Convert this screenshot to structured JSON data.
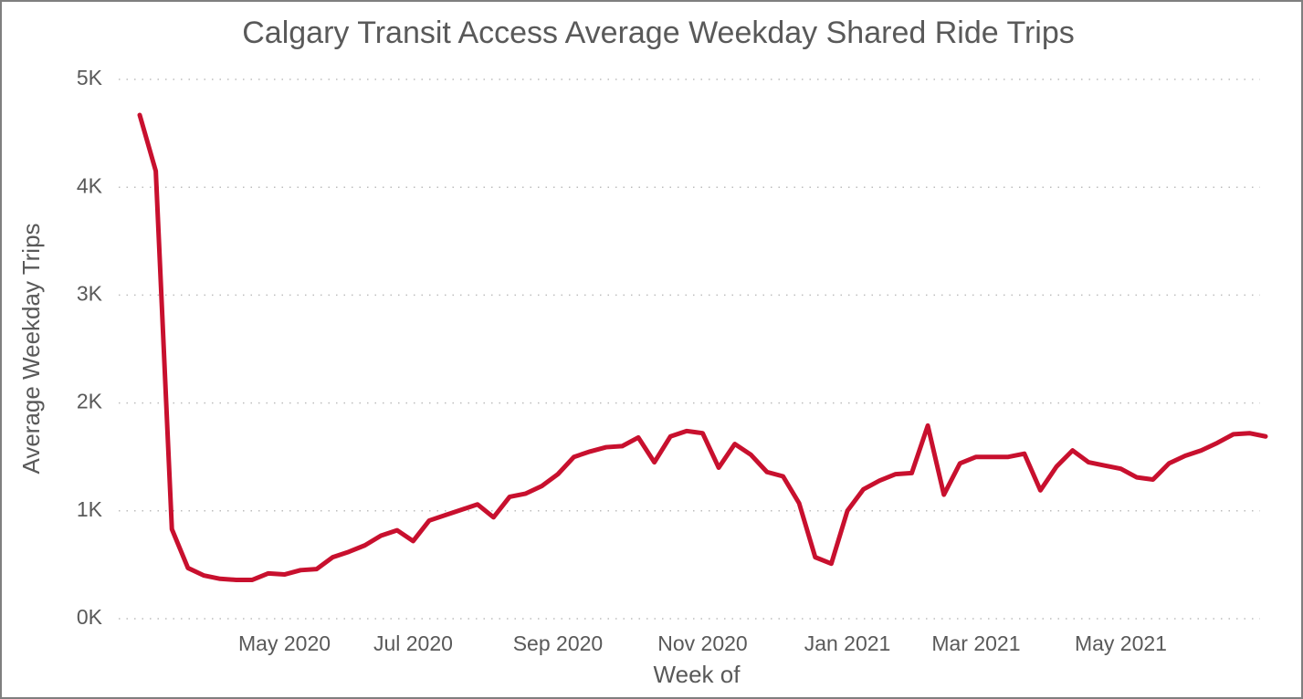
{
  "chart_data": {
    "type": "line",
    "title": "Calgary Transit Access Average Weekday Shared Ride Trips",
    "x_label": "Week of",
    "y_label": "Average Weekday Trips",
    "categories": [
      null,
      null,
      null,
      null,
      null,
      null,
      null,
      null,
      null,
      "May 2020",
      null,
      null,
      null,
      null,
      null,
      null,
      null,
      "Jul 2020",
      null,
      null,
      null,
      null,
      null,
      null,
      null,
      null,
      "Sep 2020",
      null,
      null,
      null,
      null,
      null,
      null,
      null,
      null,
      "Nov 2020",
      null,
      null,
      null,
      null,
      null,
      null,
      null,
      null,
      "Jan 2021",
      null,
      null,
      null,
      null,
      null,
      null,
      null,
      "Mar 2021",
      null,
      null,
      null,
      null,
      null,
      null,
      null,
      null,
      "May 2021",
      null,
      null,
      null,
      null,
      null,
      null,
      null,
      null,
      null
    ],
    "values": [
      4670,
      4150,
      830,
      470,
      400,
      370,
      360,
      360,
      420,
      410,
      450,
      460,
      570,
      620,
      680,
      770,
      820,
      720,
      910,
      960,
      1010,
      1060,
      940,
      1130,
      1160,
      1230,
      1340,
      1500,
      1550,
      1590,
      1600,
      1680,
      1450,
      1690,
      1740,
      1720,
      1400,
      1620,
      1520,
      1360,
      1320,
      1070,
      570,
      510,
      1000,
      1200,
      1280,
      1340,
      1350,
      1790,
      1150,
      1440,
      1500,
      1500,
      1500,
      1530,
      1190,
      1410,
      1560,
      1450,
      1420,
      1390,
      1310,
      1290,
      1440,
      1510,
      1560,
      1630,
      1710,
      1720,
      1690
    ],
    "color": "#c8102e",
    "ylim": [
      0,
      5000
    ],
    "yticks": [
      {
        "value": 0,
        "label": "0K"
      },
      {
        "value": 1000,
        "label": "1K"
      },
      {
        "value": 2000,
        "label": "2K"
      },
      {
        "value": 3000,
        "label": "3K"
      },
      {
        "value": 4000,
        "label": "4K"
      },
      {
        "value": 5000,
        "label": "5K"
      }
    ],
    "grid": true
  }
}
